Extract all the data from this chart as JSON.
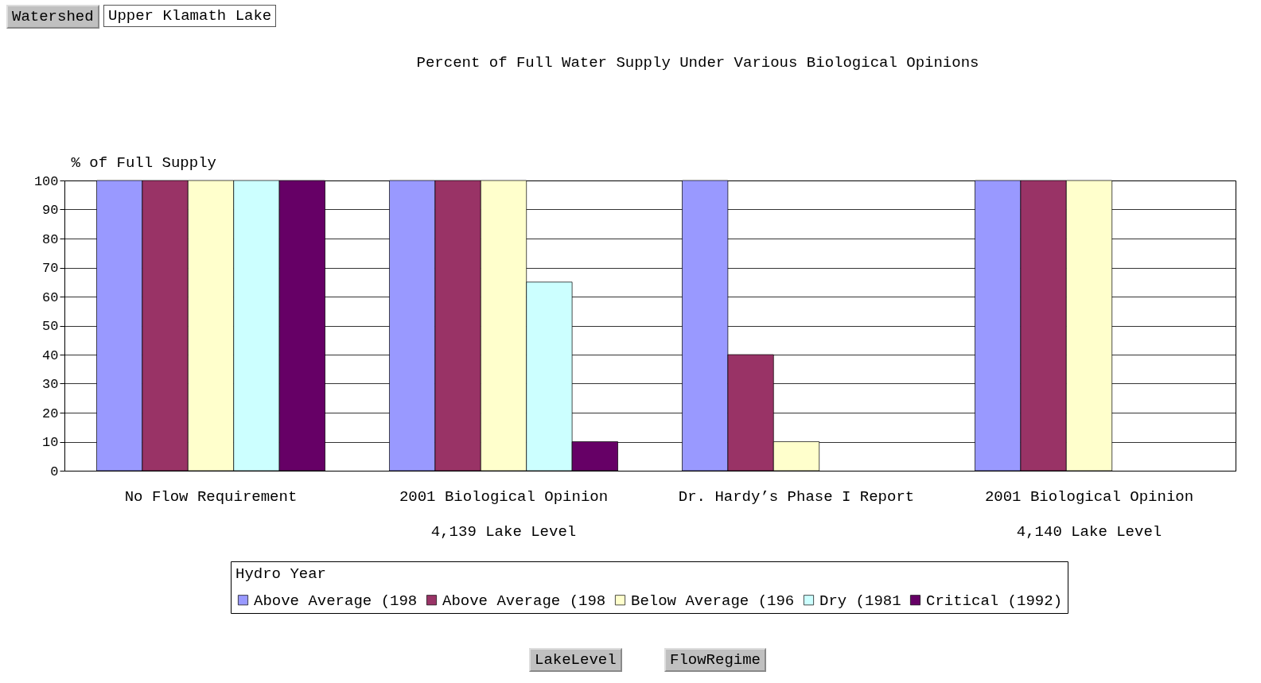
{
  "chart_data": {
    "type": "bar",
    "title": "Percent of Full Water Supply Under Various Biological Opinions",
    "ylabel": "% of Full Supply",
    "legend_title": "Hydro Year",
    "categories": [
      "No Flow Requirement",
      "2001 Biological Opinion",
      "Dr. Hardy’s Phase I Report",
      "2001 Biological Opinion"
    ],
    "series": [
      {
        "name": "Above Average (198",
        "color": "#9999ff",
        "values": [
          100,
          100,
          100,
          100
        ]
      },
      {
        "name": "Above Average (198",
        "color": "#993366",
        "values": [
          100,
          100,
          40,
          100
        ]
      },
      {
        "name": "Below Average (196",
        "color": "#ffffcc",
        "values": [
          100,
          100,
          10,
          100
        ]
      },
      {
        "name": "Dry (1981",
        "color": "#ccffff",
        "values": [
          100,
          65,
          null,
          null
        ]
      },
      {
        "name": "Critical (1992)",
        "color": "#660066",
        "values": [
          100,
          10,
          null,
          null
        ]
      }
    ],
    "ylim": [
      0,
      100
    ],
    "yticks": [
      0,
      10,
      20,
      30,
      40,
      50,
      60,
      70,
      80,
      90,
      100
    ],
    "grid": "y",
    "legend": "bottom",
    "annotations": [
      "Watershed",
      "Upper Klamath Lake",
      "4,139 Lake Level",
      "4,140 Lake Level",
      "LakeLevel",
      "FlowRegime"
    ]
  }
}
